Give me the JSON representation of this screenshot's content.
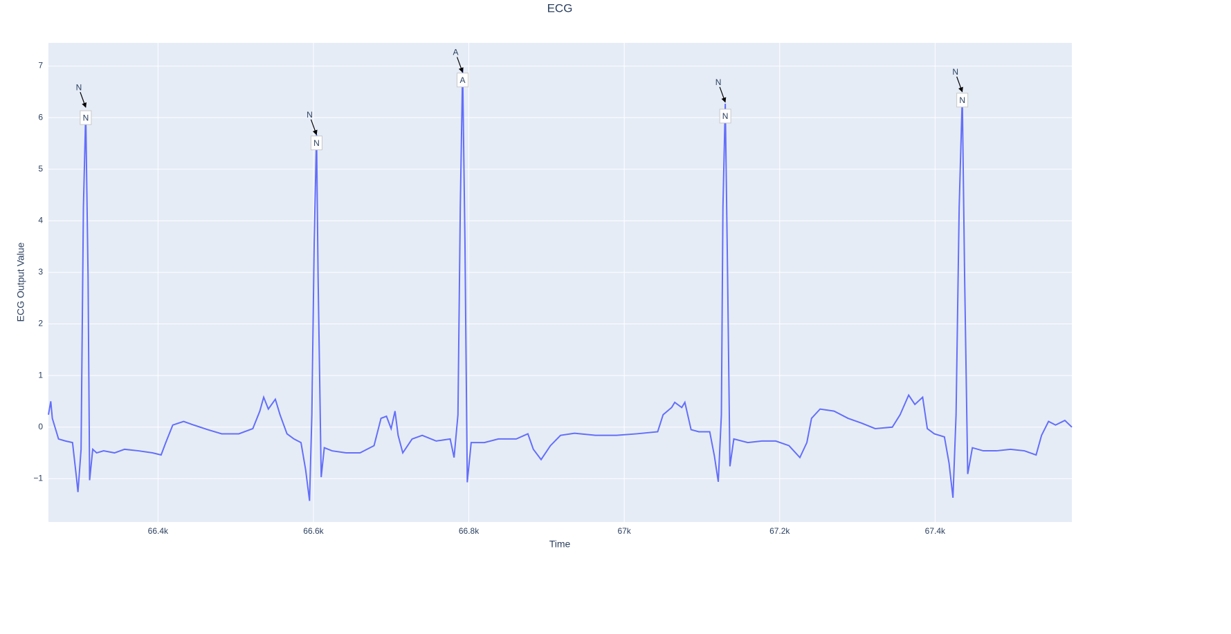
{
  "chart_data": {
    "type": "line",
    "title": "ECG",
    "xlabel": "Time",
    "ylabel": "ECG Output Value",
    "color": "#636efa",
    "grid": true,
    "xlim": [
      66259,
      67576
    ],
    "ylim": [
      -1.84,
      7.45
    ],
    "xticks": [
      {
        "value": 66400,
        "label": "66.4k"
      },
      {
        "value": 66600,
        "label": "66.6k"
      },
      {
        "value": 66800,
        "label": "66.8k"
      },
      {
        "value": 67000,
        "label": "67k"
      },
      {
        "value": 67200,
        "label": "67.2k"
      },
      {
        "value": 67400,
        "label": "67.4k"
      }
    ],
    "yticks": [
      {
        "value": -1,
        "label": "−1"
      },
      0,
      1,
      2,
      3,
      4,
      5,
      6,
      7
    ],
    "x": [
      66259,
      66262,
      66264,
      66268,
      66272,
      66281,
      66290,
      66295,
      66297,
      66301,
      66304,
      66307,
      66310,
      66312,
      66316,
      66321,
      66330,
      66344,
      66357,
      66375,
      66393,
      66404,
      66410,
      66419,
      66433,
      66446,
      66464,
      66482,
      66504,
      66522,
      66531,
      66536,
      66542,
      66551,
      66557,
      66566,
      66575,
      66584,
      66590,
      66595,
      66598,
      66601,
      66604,
      66606,
      66610,
      66614,
      66624,
      66642,
      66660,
      66678,
      66687,
      66694,
      66700,
      66705,
      66709,
      66715,
      66727,
      66740,
      66758,
      66776,
      66781,
      66786,
      66789,
      66792,
      66795,
      66798,
      66803,
      66820,
      66838,
      66861,
      66876,
      66883,
      66893,
      66905,
      66918,
      66936,
      66963,
      66990,
      67016,
      67043,
      67050,
      67061,
      67065,
      67074,
      67078,
      67086,
      67096,
      67110,
      67116,
      67121,
      67125,
      67127,
      67130,
      67133,
      67136,
      67141,
      67159,
      67177,
      67195,
      67212,
      67226,
      67235,
      67241,
      67252,
      67270,
      67288,
      67305,
      67323,
      67345,
      67355,
      67366,
      67374,
      67384,
      67390,
      67399,
      67412,
      67418,
      67423,
      67427,
      67431,
      67435,
      67438,
      67442,
      67448,
      67462,
      67479,
      67497,
      67515,
      67530,
      67537,
      67546,
      67555,
      67567,
      67576
    ],
    "values": [
      0.24,
      0.5,
      0.17,
      -0.03,
      -0.23,
      -0.27,
      -0.3,
      -0.97,
      -1.26,
      -0.43,
      4.26,
      6.1,
      2.92,
      -1.03,
      -0.43,
      -0.5,
      -0.46,
      -0.5,
      -0.43,
      -0.46,
      -0.5,
      -0.54,
      -0.3,
      0.04,
      0.11,
      0.04,
      -0.05,
      -0.13,
      -0.13,
      -0.03,
      0.31,
      0.58,
      0.35,
      0.54,
      0.24,
      -0.13,
      -0.23,
      -0.3,
      -0.83,
      -1.43,
      0.24,
      3.59,
      5.67,
      2.92,
      -0.97,
      -0.4,
      -0.46,
      -0.5,
      -0.5,
      -0.36,
      0.17,
      0.21,
      -0.03,
      0.31,
      -0.16,
      -0.5,
      -0.23,
      -0.16,
      -0.27,
      -0.23,
      -0.59,
      0.24,
      4.26,
      6.94,
      3.59,
      -1.07,
      -0.3,
      -0.3,
      -0.23,
      -0.23,
      -0.13,
      -0.43,
      -0.63,
      -0.36,
      -0.16,
      -0.12,
      -0.16,
      -0.16,
      -0.13,
      -0.09,
      0.24,
      0.38,
      0.48,
      0.38,
      0.48,
      -0.05,
      -0.09,
      -0.09,
      -0.56,
      -1.06,
      0.24,
      4.26,
      6.27,
      2.92,
      -0.76,
      -0.23,
      -0.3,
      -0.27,
      -0.27,
      -0.36,
      -0.59,
      -0.3,
      0.17,
      0.35,
      0.31,
      0.17,
      0.08,
      -0.03,
      0,
      0.24,
      0.62,
      0.44,
      0.58,
      -0.03,
      -0.13,
      -0.19,
      -0.7,
      -1.37,
      0.24,
      4.26,
      6.41,
      2.92,
      -0.91,
      -0.4,
      -0.46,
      -0.46,
      -0.43,
      -0.46,
      -0.54,
      -0.16,
      0.11,
      0.04,
      0.13,
      0
    ],
    "annotations": [
      {
        "x": 66307,
        "y": 6.0,
        "text": "N"
      },
      {
        "x": 66604,
        "y": 5.51,
        "text": "N"
      },
      {
        "x": 66792,
        "y": 6.73,
        "text": "A"
      },
      {
        "x": 67130,
        "y": 6.03,
        "text": "N"
      },
      {
        "x": 67435,
        "y": 6.34,
        "text": "N"
      }
    ],
    "arrow_annotations": [
      {
        "x": 66307,
        "y": 6.2,
        "text": "N"
      },
      {
        "x": 66604,
        "y": 5.67,
        "text": "N"
      },
      {
        "x": 66792,
        "y": 6.88,
        "text": "A"
      },
      {
        "x": 67130,
        "y": 6.3,
        "text": "N"
      },
      {
        "x": 67435,
        "y": 6.5,
        "text": "N"
      }
    ]
  }
}
